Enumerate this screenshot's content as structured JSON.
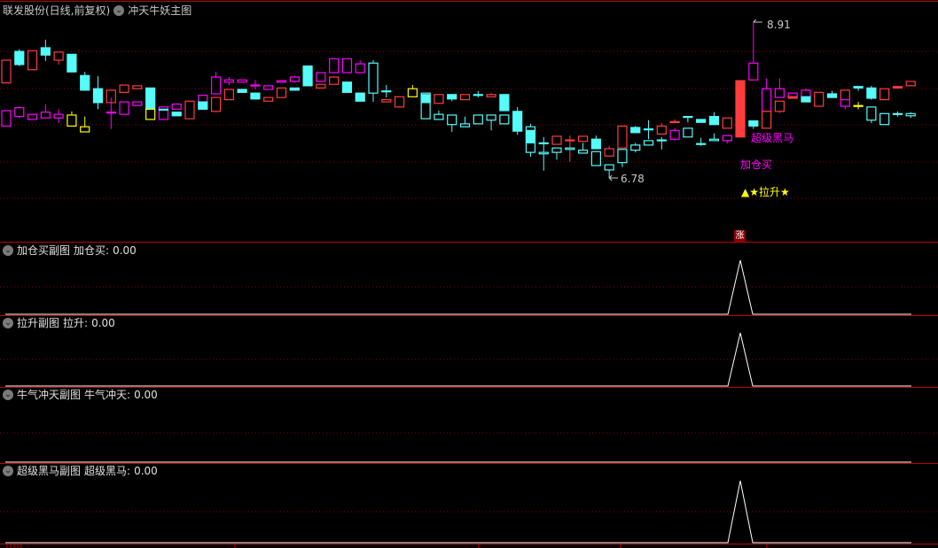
{
  "header": {
    "stock": "联发股份(日线,前复权)",
    "indicator": "冲天牛妖主图",
    "menu_icon": "chevron-down-circle-icon"
  },
  "colors": {
    "up": "#ff3c3c",
    "down": "#54fcfc",
    "magenta": "#ff00ff",
    "yellow": "#ffff00",
    "grid": "#8b0000",
    "border": "#c00000",
    "signal_line": "#ffffff"
  },
  "annotations": {
    "high_label": "8.91",
    "low_label": "6.78",
    "super_horse": "超级黑马",
    "add_buy": "加仓买",
    "pull_up": "▲★拉升★",
    "limit_up_badge": "涨"
  },
  "chart_data": {
    "type": "candlestick",
    "price_range": [
      6.56,
      9.21
    ],
    "high": 8.91,
    "low": 6.78,
    "grid": true,
    "palette_keys": {
      "r": "up",
      "c": "down",
      "m": "magenta",
      "y": "yellow"
    },
    "bars": [
      [
        [
          8.39,
          8.08,
          8.39,
          8.08,
          "r",
          0
        ],
        [
          7.7,
          7.49,
          7.7,
          7.49,
          "m",
          0
        ]
      ],
      [
        [
          8.51,
          8.33,
          8.54,
          8.31,
          "c",
          1
        ],
        [
          7.74,
          7.62,
          7.76,
          7.6,
          "m",
          0
        ]
      ],
      [
        [
          8.52,
          8.26,
          8.52,
          8.26,
          "r",
          0
        ],
        [
          7.65,
          7.58,
          7.65,
          7.58,
          "m",
          0
        ]
      ],
      [
        [
          8.56,
          8.46,
          8.67,
          8.38,
          "c",
          1
        ],
        [
          7.68,
          7.6,
          7.79,
          7.6,
          "m",
          0
        ]
      ],
      [
        [
          8.5,
          8.39,
          8.5,
          8.33,
          "r",
          0
        ],
        [
          7.65,
          7.6,
          7.72,
          7.53,
          "m",
          0
        ]
      ],
      [
        [
          8.47,
          8.23,
          8.47,
          8.23,
          "c",
          1
        ],
        [
          7.64,
          7.49,
          7.69,
          7.49,
          "y",
          0
        ]
      ],
      [
        [
          8.18,
          7.98,
          8.23,
          7.98,
          "c",
          1
        ],
        [
          7.48,
          7.41,
          7.62,
          7.41,
          "y",
          0
        ]
      ],
      [
        [
          8.0,
          7.81,
          8.17,
          7.72,
          "c",
          1
        ]
      ],
      [
        [
          7.98,
          7.81,
          7.98,
          7.81,
          "r",
          0
        ],
        [
          7.68,
          7.67,
          7.88,
          7.45,
          "m",
          1
        ]
      ],
      [
        [
          8.05,
          7.95,
          8.05,
          7.95,
          "r",
          0
        ],
        [
          7.82,
          7.65,
          7.82,
          7.65,
          "m",
          0
        ]
      ],
      [
        [
          8.04,
          8.0,
          8.04,
          8.0,
          "r",
          0
        ],
        [
          7.82,
          7.77,
          7.82,
          7.77,
          "m",
          0
        ]
      ],
      [
        [
          8.01,
          7.72,
          8.01,
          7.72,
          "c",
          1
        ],
        [
          7.72,
          7.58,
          7.72,
          7.58,
          "y",
          0
        ]
      ],
      [
        [
          7.75,
          7.58,
          7.75,
          7.58,
          "m",
          0
        ],
        [
          7.72,
          7.71,
          7.72,
          7.71,
          "c",
          1
        ]
      ],
      [
        [
          7.79,
          7.72,
          7.79,
          7.72,
          "m",
          0
        ],
        [
          7.68,
          7.63,
          7.68,
          7.63,
          "c",
          1
        ]
      ],
      [
        [
          7.83,
          7.59,
          7.83,
          7.59,
          "r",
          0
        ]
      ],
      [
        [
          7.91,
          7.82,
          7.91,
          7.82,
          "m",
          0
        ],
        [
          7.82,
          7.72,
          7.82,
          7.72,
          "c",
          1
        ]
      ],
      [
        [
          8.16,
          7.93,
          8.23,
          7.93,
          "m",
          0
        ],
        [
          7.88,
          7.69,
          7.88,
          7.69,
          "r",
          0
        ]
      ],
      [
        [
          8.12,
          8.09,
          8.16,
          8.05,
          "m",
          0
        ],
        [
          7.99,
          7.85,
          7.99,
          7.85,
          "r",
          0
        ]
      ],
      [
        [
          8.12,
          8.09,
          8.12,
          8.09,
          "m",
          0
        ],
        [
          7.99,
          7.95,
          7.99,
          7.95,
          "c",
          1
        ]
      ],
      [
        [
          8.05,
          8.04,
          8.12,
          7.99,
          "m",
          0
        ],
        [
          7.94,
          7.86,
          7.94,
          7.86,
          "c",
          1
        ]
      ],
      [
        [
          8.04,
          7.99,
          8.04,
          7.99,
          "m",
          0
        ],
        [
          7.88,
          7.83,
          7.88,
          7.83,
          "r",
          0
        ]
      ],
      [
        [
          8.11,
          8.09,
          8.11,
          8.09,
          "m",
          0
        ],
        [
          8.01,
          7.88,
          8.01,
          7.88,
          "r",
          0
        ]
      ],
      [
        [
          8.16,
          8.1,
          8.18,
          8.08,
          "m",
          0
        ],
        [
          8.01,
          7.98,
          8.01,
          7.98,
          "c",
          1
        ]
      ],
      [
        [
          8.31,
          8.04,
          8.32,
          8.04,
          "c",
          1
        ]
      ],
      [
        [
          8.22,
          8.1,
          8.22,
          8.1,
          "m",
          0
        ],
        [
          8.06,
          8.01,
          8.06,
          8.01,
          "r",
          0
        ]
      ],
      [
        [
          8.41,
          8.22,
          8.41,
          8.22,
          "m",
          0
        ],
        [
          8.16,
          8.06,
          8.16,
          8.06,
          "r",
          0
        ]
      ],
      [
        [
          8.41,
          8.22,
          8.41,
          8.22,
          "m",
          0
        ],
        [
          8.09,
          7.95,
          8.09,
          7.95,
          "c",
          1
        ]
      ],
      [
        [
          8.34,
          8.22,
          8.39,
          8.22,
          "m",
          0
        ],
        [
          7.94,
          7.83,
          7.94,
          7.83,
          "c",
          1
        ]
      ],
      [
        [
          8.35,
          7.94,
          8.39,
          7.82,
          "c",
          0
        ]
      ],
      [
        [
          7.97,
          7.97,
          8.05,
          7.88,
          "c",
          1
        ],
        [
          7.85,
          7.82,
          7.85,
          7.82,
          "r",
          0
        ]
      ],
      [
        [
          7.89,
          7.75,
          7.89,
          7.75,
          "r",
          0
        ]
      ],
      [
        [
          8.0,
          7.89,
          8.05,
          7.89,
          "y",
          0
        ]
      ],
      [
        [
          7.94,
          7.59,
          7.94,
          7.59,
          "c",
          0
        ],
        [
          7.92,
          7.81,
          7.92,
          7.81,
          "c",
          1
        ]
      ],
      [
        [
          7.92,
          7.8,
          7.92,
          7.8,
          "r",
          0
        ],
        [
          7.65,
          7.58,
          7.7,
          7.58,
          "c",
          0
        ]
      ],
      [
        [
          7.92,
          7.86,
          7.92,
          7.83,
          "c",
          1
        ],
        [
          7.64,
          7.51,
          7.64,
          7.41,
          "c",
          0
        ]
      ],
      [
        [
          7.92,
          7.85,
          7.92,
          7.85,
          "r",
          0
        ],
        [
          7.52,
          7.48,
          7.62,
          7.48,
          "c",
          0
        ]
      ],
      [
        [
          7.92,
          7.91,
          7.97,
          7.88,
          "c",
          1
        ],
        [
          7.64,
          7.52,
          7.64,
          7.52,
          "c",
          0
        ]
      ],
      [
        [
          7.92,
          7.89,
          7.94,
          7.89,
          "r",
          0
        ],
        [
          7.64,
          7.57,
          7.64,
          7.43,
          "c",
          0
        ]
      ],
      [
        [
          7.92,
          7.7,
          7.92,
          7.7,
          "c",
          1
        ],
        [
          7.64,
          7.52,
          7.64,
          7.52,
          "c",
          0
        ]
      ],
      [
        [
          7.69,
          7.42,
          7.75,
          7.37,
          "c",
          1
        ]
      ],
      [
        [
          7.48,
          7.13,
          7.52,
          7.07,
          "c",
          0
        ],
        [
          7.43,
          7.26,
          7.43,
          7.26,
          "c",
          1
        ]
      ],
      [
        [
          7.26,
          7.26,
          7.34,
          6.88,
          "c",
          1
        ],
        [
          7.13,
          7.11,
          7.13,
          7.11,
          "c",
          0
        ]
      ],
      [
        [
          7.35,
          7.24,
          7.35,
          7.24,
          "r",
          0
        ],
        [
          7.19,
          7.13,
          7.19,
          7.03,
          "c",
          0
        ]
      ],
      [
        [
          7.3,
          7.3,
          7.36,
          7.0,
          "r",
          1
        ],
        [
          7.19,
          7.17,
          7.19,
          7.17,
          "c",
          0
        ]
      ],
      [
        [
          7.35,
          7.28,
          7.35,
          7.28,
          "r",
          0
        ],
        [
          7.16,
          7.12,
          7.26,
          7.12,
          "c",
          0
        ]
      ],
      [
        [
          7.31,
          7.18,
          7.36,
          7.18,
          "c",
          1
        ],
        [
          7.14,
          6.95,
          7.14,
          6.95,
          "c",
          0
        ]
      ],
      [
        [
          7.18,
          7.08,
          7.22,
          7.08,
          "r",
          0
        ],
        [
          6.96,
          6.89,
          6.96,
          6.78,
          "c",
          0
        ]
      ],
      [
        [
          7.49,
          7.19,
          7.49,
          7.19,
          "r",
          0
        ],
        [
          7.17,
          6.99,
          7.17,
          6.93,
          "c",
          0
        ]
      ],
      [
        [
          7.47,
          7.4,
          7.49,
          7.4,
          "c",
          1
        ],
        [
          7.23,
          7.16,
          7.26,
          7.13,
          "c",
          0
        ]
      ],
      [
        [
          7.45,
          7.45,
          7.57,
          7.31,
          "c",
          1
        ],
        [
          7.29,
          7.23,
          7.29,
          7.23,
          "c",
          0
        ]
      ],
      [
        [
          7.49,
          7.38,
          7.53,
          7.38,
          "r",
          0
        ],
        [
          7.3,
          7.3,
          7.34,
          7.17,
          "c",
          1
        ]
      ],
      [
        [
          7.55,
          7.55,
          7.58,
          7.55,
          "r",
          1
        ],
        [
          7.43,
          7.31,
          7.46,
          7.29,
          "m",
          0
        ]
      ],
      [
        [
          7.62,
          7.62,
          7.62,
          7.54,
          "c",
          1
        ],
        [
          7.46,
          7.34,
          7.46,
          7.34,
          "c",
          0
        ]
      ],
      [
        [
          7.58,
          7.54,
          7.58,
          7.54,
          "c",
          1
        ],
        [
          7.25,
          7.25,
          7.33,
          7.22,
          "c",
          1
        ]
      ],
      [
        [
          7.62,
          7.51,
          7.68,
          7.51,
          "c",
          1
        ],
        [
          7.31,
          7.29,
          7.39,
          7.29,
          "c",
          0
        ]
      ],
      [
        [
          7.6,
          7.46,
          7.6,
          7.46,
          "r",
          0
        ],
        [
          7.36,
          7.29,
          7.36,
          7.25,
          "m",
          0
        ]
      ],
      [
        [
          8.11,
          7.34,
          8.11,
          7.34,
          "r",
          1
        ]
      ],
      [
        [
          8.35,
          8.12,
          8.91,
          8.12,
          "m",
          0
        ],
        [
          7.56,
          7.49,
          7.56,
          7.45,
          "c",
          1
        ]
      ],
      [
        [
          8.0,
          7.69,
          8.14,
          7.69,
          "m",
          0
        ],
        [
          7.69,
          7.46,
          7.69,
          7.46,
          "r",
          0
        ]
      ],
      [
        [
          8.0,
          7.88,
          8.14,
          7.88,
          "m",
          0
        ],
        [
          7.83,
          7.69,
          7.83,
          7.67,
          "r",
          0
        ]
      ],
      [
        [
          7.94,
          7.89,
          7.94,
          7.89,
          "m",
          0
        ],
        [
          7.89,
          7.87,
          7.89,
          7.87,
          "r",
          1
        ]
      ],
      [
        [
          7.98,
          7.89,
          8.0,
          7.89,
          "m",
          0
        ],
        [
          7.89,
          7.82,
          7.89,
          7.82,
          "c",
          1
        ]
      ],
      [
        [
          7.95,
          7.76,
          7.95,
          7.76,
          "r",
          0
        ]
      ],
      [
        [
          7.93,
          7.88,
          7.97,
          7.88,
          "c",
          1
        ]
      ],
      [
        [
          7.98,
          7.85,
          7.98,
          7.85,
          "r",
          0
        ],
        [
          7.85,
          7.76,
          7.85,
          7.72,
          "m",
          0
        ]
      ],
      [
        [
          8.03,
          8.01,
          8.04,
          7.97,
          "c",
          1
        ],
        [
          7.77,
          7.77,
          7.82,
          7.72,
          "y",
          1
        ]
      ],
      [
        [
          8.01,
          7.87,
          8.04,
          7.85,
          "c",
          1
        ],
        [
          7.75,
          7.57,
          7.75,
          7.53,
          "c",
          0
        ]
      ],
      [
        [
          8.0,
          7.85,
          8.0,
          7.85,
          "r",
          0
        ],
        [
          7.66,
          7.51,
          7.66,
          7.51,
          "c",
          0
        ]
      ],
      [
        [
          8.03,
          8.01,
          8.04,
          8.0,
          "r",
          1
        ],
        [
          7.66,
          7.66,
          7.69,
          7.62,
          "c",
          1
        ]
      ],
      [
        [
          8.1,
          8.04,
          8.1,
          8.04,
          "r",
          0
        ],
        [
          7.66,
          7.63,
          7.68,
          7.6,
          "c",
          0
        ]
      ]
    ],
    "signal_bar": 56
  },
  "subcharts": [
    {
      "title": "加仓买副图",
      "series": "加仓买",
      "value": "0.00",
      "signal": true
    },
    {
      "title": "拉升副图",
      "series": "拉升",
      "value": "0.00",
      "signal": true
    },
    {
      "title": "牛气冲天副图",
      "series": "牛气冲天",
      "value": "0.00",
      "signal": false
    },
    {
      "title": "超级黑马副图",
      "series": "超级黑马",
      "value": "0.00",
      "signal": true
    }
  ]
}
